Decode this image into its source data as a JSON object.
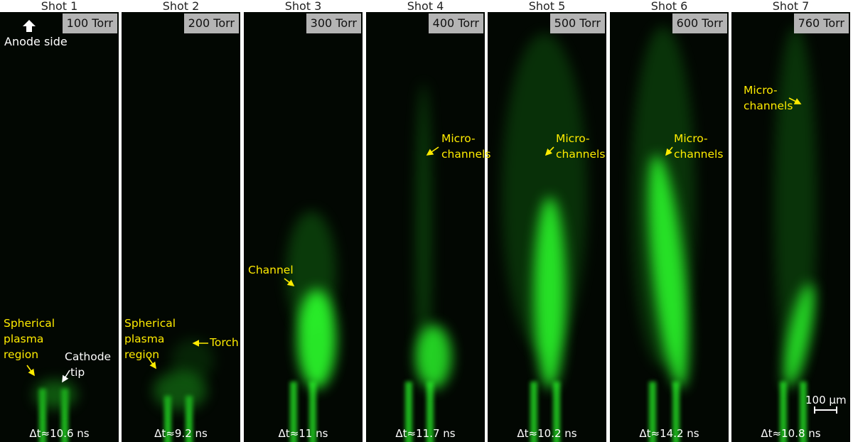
{
  "shots": [
    {
      "label": "Shot 1",
      "pressure": "100 Torr",
      "dt": "Δt≈10.6 ns"
    },
    {
      "label": "Shot 2",
      "pressure": "200 Torr",
      "dt": "Δt≈9.2 ns"
    },
    {
      "label": "Shot 3",
      "pressure": "300 Torr",
      "dt": "Δt≈11 ns"
    },
    {
      "label": "Shot 4",
      "pressure": "400 Torr",
      "dt": "Δt≈11.7 ns"
    },
    {
      "label": "Shot 5",
      "pressure": "500 Torr",
      "dt": "Δt≈10.2 ns"
    },
    {
      "label": "Shot 6",
      "pressure": "600 Torr",
      "dt": "Δt≈14.2 ns"
    },
    {
      "label": "Shot 7",
      "pressure": "760 Torr",
      "dt": "Δt≈10.8 ns"
    }
  ],
  "annotations": {
    "anode": "Anode side",
    "spherical_1": [
      "Spherical",
      "plasma",
      "region"
    ],
    "cathode": [
      "Cathode",
      "tip"
    ],
    "spherical_2": [
      "Spherical",
      "plasma",
      "region"
    ],
    "torch": "Torch",
    "channel": "Channel",
    "micro_4": [
      "Micro-",
      "channels"
    ],
    "micro_5": [
      "Micro-",
      "channels"
    ],
    "micro_6": [
      "Micro-",
      "channels"
    ],
    "micro_7": [
      "Micro-",
      "channels"
    ],
    "scale": "100 µm"
  },
  "colors": {
    "annotation": "#ffec00",
    "plasma": "#2cff2c",
    "badge": "#b4b4b4"
  }
}
